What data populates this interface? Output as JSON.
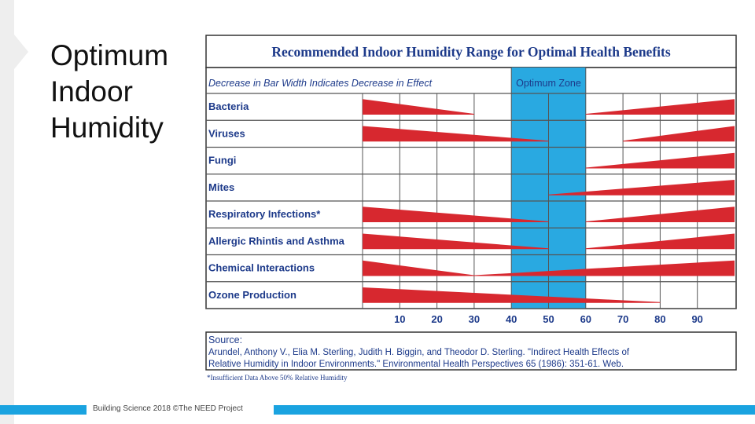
{
  "slide": {
    "title_lines": [
      "Optimum",
      "Indoor",
      "Humidity"
    ],
    "footer": "Building Science 2018 ©The NEED Project"
  },
  "chart_data": {
    "type": "bar",
    "title": "Recommended Indoor Humidity Range for Optimal Health Benefits",
    "subtitle": "Decrease in Bar Width Indicates Decrease in Effect",
    "zone_label": "Optimum Zone",
    "optimum_zone": [
      40,
      60
    ],
    "x_ticks": [
      10,
      20,
      30,
      40,
      50,
      60,
      70,
      80,
      90
    ],
    "xlim": [
      0,
      100
    ],
    "bar_color": "#d7282f",
    "zone_color": "#29a9e1",
    "categories": [
      "Bacteria",
      "Viruses",
      "Fungi",
      "Mites",
      "Respiratory Infections*",
      "Allergic Rhintis and Asthma",
      "Chemical Interactions",
      "Ozone Production"
    ],
    "effects": [
      {
        "low": {
          "from": 0,
          "to": 30
        },
        "high": {
          "from": 60,
          "to": 100
        }
      },
      {
        "low": {
          "from": 0,
          "to": 50
        },
        "high": {
          "from": 70,
          "to": 100
        }
      },
      {
        "low": null,
        "high": {
          "from": 60,
          "to": 100
        }
      },
      {
        "low": null,
        "high": {
          "from": 50,
          "to": 100
        }
      },
      {
        "low": {
          "from": 0,
          "to": 50
        },
        "high": {
          "from": 60,
          "to": 100
        }
      },
      {
        "low": {
          "from": 0,
          "to": 50
        },
        "high": {
          "from": 60,
          "to": 100
        }
      },
      {
        "low": {
          "from": 0,
          "to": 30
        },
        "high": {
          "from": 30,
          "to": 100
        }
      },
      {
        "low": {
          "from": 0,
          "to": 80
        },
        "high": null
      }
    ],
    "source_label": "Source:",
    "source_lines": [
      "Arundel, Anthony V., Elia M. Sterling, Judith H. Biggin, and Theodor D. Sterling. \"Indirect Health Effects of",
      "Relative Humidity in Indoor Environments.\" Environmental Health Perspectives 65 (1986): 351-61. Web."
    ],
    "footnote": "*Insufficient Data Above 50% Relative Humidity"
  }
}
